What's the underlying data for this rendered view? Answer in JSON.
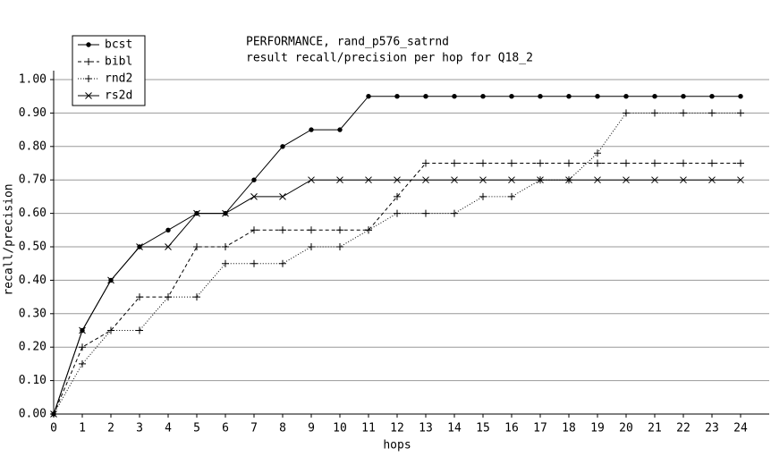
{
  "chart_data": {
    "type": "line",
    "title": "PERFORMANCE, rand_p576_satrnd",
    "subtitle": "result recall/precision per hop for Q18_2",
    "x_label": "hops",
    "y_label": "recall/precision",
    "x": [
      0,
      1,
      2,
      3,
      4,
      5,
      6,
      7,
      8,
      9,
      10,
      11,
      12,
      13,
      14,
      15,
      16,
      17,
      18,
      19,
      20,
      21,
      22,
      23,
      24
    ],
    "series": [
      {
        "name": "bcst",
        "color": "#000000",
        "dash": "none",
        "marker": "dot",
        "values": [
          0,
          0.25,
          0.4,
          0.5,
          0.55,
          0.6,
          0.6,
          0.7,
          0.8,
          0.85,
          0.85,
          0.95,
          0.95,
          0.95,
          0.95,
          0.95,
          0.95,
          0.95,
          0.95,
          0.95,
          0.95,
          0.95,
          0.95,
          0.95,
          0.95
        ]
      },
      {
        "name": "bibl",
        "color": "#000000",
        "dash": "4,3",
        "marker": "plus",
        "values": [
          0,
          0.2,
          0.25,
          0.35,
          0.35,
          0.5,
          0.5,
          0.55,
          0.55,
          0.55,
          0.55,
          0.55,
          0.65,
          0.75,
          0.75,
          0.75,
          0.75,
          0.75,
          0.75,
          0.75,
          0.75,
          0.75,
          0.75,
          0.75,
          0.75
        ]
      },
      {
        "name": "rnd2",
        "color": "#000000",
        "dash": "1,2",
        "marker": "plus",
        "values": [
          0,
          0.15,
          0.25,
          0.25,
          0.35,
          0.35,
          0.45,
          0.45,
          0.45,
          0.5,
          0.5,
          0.55,
          0.6,
          0.6,
          0.6,
          0.65,
          0.65,
          0.7,
          0.7,
          0.78,
          0.9,
          0.9,
          0.9,
          0.9,
          0.9
        ]
      },
      {
        "name": "rs2d",
        "color": "#000000",
        "dash": "none",
        "marker": "cross",
        "values": [
          0,
          0.25,
          0.4,
          0.5,
          0.5,
          0.6,
          0.6,
          0.65,
          0.65,
          0.7,
          0.7,
          0.7,
          0.7,
          0.7,
          0.7,
          0.7,
          0.7,
          0.7,
          0.7,
          0.7,
          0.7,
          0.7,
          0.7,
          0.7,
          0.7
        ]
      }
    ],
    "xlim": [
      0,
      24
    ],
    "xticks": [
      0,
      1,
      2,
      3,
      4,
      5,
      6,
      7,
      8,
      9,
      10,
      11,
      12,
      13,
      14,
      15,
      16,
      17,
      18,
      19,
      20,
      21,
      22,
      23,
      24
    ],
    "ylim": [
      0,
      1
    ],
    "yticks": [
      {
        "value": 0,
        "label": "0.00"
      },
      {
        "value": 0.1,
        "label": "0.10"
      },
      {
        "value": 0.2,
        "label": "0.20"
      },
      {
        "value": 0.3,
        "label": "0.30"
      },
      {
        "value": 0.4,
        "label": "0.40"
      },
      {
        "value": 0.5,
        "label": "0.50"
      },
      {
        "value": 0.6,
        "label": "0.60"
      },
      {
        "value": 0.7,
        "label": "0.70"
      },
      {
        "value": 0.8,
        "label": "0.80"
      },
      {
        "value": 0.9,
        "label": "0.90"
      },
      {
        "value": 1,
        "label": "1.00"
      }
    ],
    "grid": true,
    "legend": "upper left"
  }
}
